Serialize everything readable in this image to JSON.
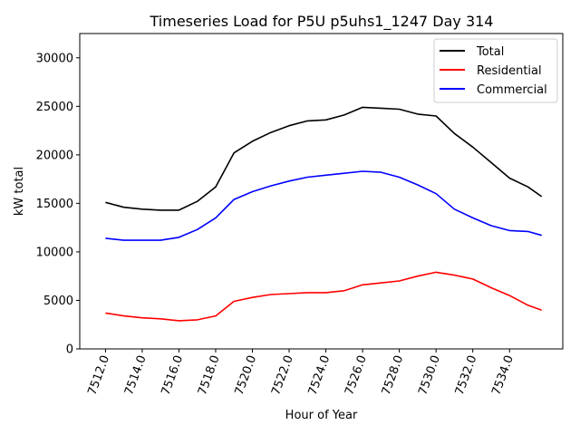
{
  "chart_data": {
    "type": "line",
    "title": "Timeseries Load for P5U p5uhs1_1247  Day 314",
    "xlabel": "Hour of Year",
    "ylabel": "kW total",
    "xlim": [
      7510.6,
      7536.9
    ],
    "ylim": [
      0,
      32500
    ],
    "x_ticks": [
      7512,
      7514,
      7516,
      7518,
      7520,
      7522,
      7524,
      7526,
      7528,
      7530,
      7532,
      7534
    ],
    "x_tick_labels": [
      "7512.0",
      "7514.0",
      "7516.0",
      "7518.0",
      "7520.0",
      "7522.0",
      "7524.0",
      "7526.0",
      "7528.0",
      "7530.0",
      "7532.0",
      "7534.0"
    ],
    "y_ticks": [
      0,
      5000,
      10000,
      15000,
      20000,
      25000,
      30000
    ],
    "y_tick_labels": [
      "0",
      "5000",
      "10000",
      "15000",
      "20000",
      "25000",
      "30000"
    ],
    "legend_position": "top-right",
    "x": [
      7512,
      7513,
      7514,
      7515,
      7516,
      7517,
      7518,
      7519,
      7520,
      7521,
      7522,
      7523,
      7524,
      7525,
      7526,
      7527,
      7528,
      7529,
      7530,
      7531,
      7532,
      7533,
      7534,
      7535,
      7535.75
    ],
    "series": [
      {
        "name": "Total",
        "color": "#000000",
        "values": [
          15100,
          14600,
          14400,
          14300,
          14300,
          15200,
          16700,
          20200,
          21400,
          22300,
          23000,
          23500,
          23600,
          24100,
          24900,
          24800,
          24700,
          24200,
          24000,
          22200,
          20800,
          19200,
          17600,
          16700,
          15700
        ]
      },
      {
        "name": "Residential",
        "color": "#ff0000",
        "values": [
          3700,
          3400,
          3200,
          3100,
          2900,
          3000,
          3400,
          4900,
          5300,
          5600,
          5700,
          5800,
          5800,
          6000,
          6600,
          6800,
          7000,
          7500,
          7900,
          7600,
          7200,
          6300,
          5500,
          4500,
          4000
        ]
      },
      {
        "name": "Commercial",
        "color": "#0000ff",
        "values": [
          11400,
          11200,
          11200,
          11200,
          11500,
          12300,
          13500,
          15400,
          16200,
          16800,
          17300,
          17700,
          17900,
          18100,
          18300,
          18200,
          17700,
          16900,
          16000,
          14400,
          13500,
          12700,
          12200,
          12100,
          11700
        ]
      }
    ]
  }
}
